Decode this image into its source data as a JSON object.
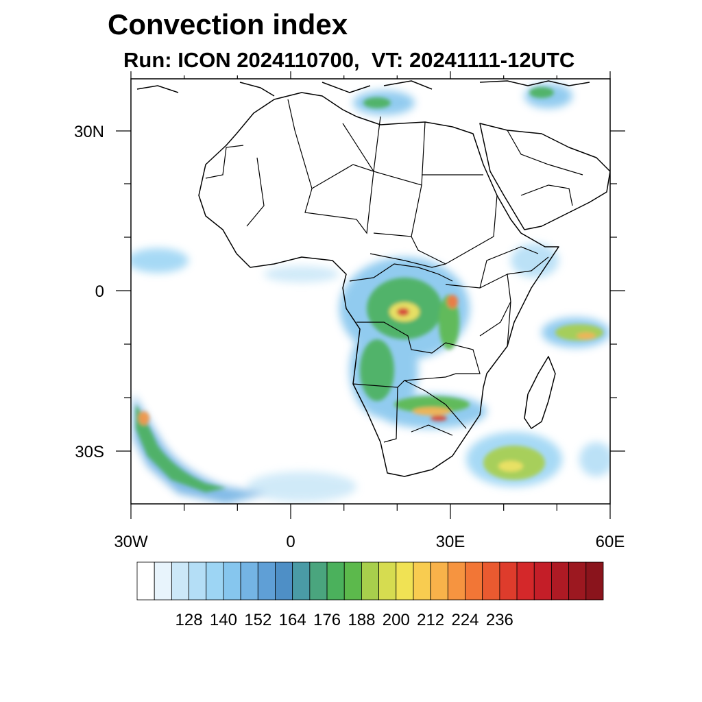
{
  "title": "Convection index",
  "subtitle": "Run: ICON 2024110700,  VT: 20241111-12UTC",
  "map": {
    "lon_labels": [
      "30W",
      "0",
      "30E",
      "60E"
    ],
    "lat_labels": [
      "30N",
      "0",
      "30S"
    ]
  },
  "colorbar": {
    "labels": [
      "128",
      "140",
      "152",
      "164",
      "176",
      "188",
      "200",
      "212",
      "224",
      "236"
    ],
    "colors": [
      "#ffffff",
      "#e8f4fc",
      "#cce8f8",
      "#b4def6",
      "#9dd5f4",
      "#86c6ee",
      "#74b4e4",
      "#5f9fd6",
      "#4e8fc6",
      "#4a9ba6",
      "#4aa57e",
      "#4bb15c",
      "#5cb94c",
      "#a8cf4c",
      "#d6dc50",
      "#f0e254",
      "#f8cc50",
      "#f8b24a",
      "#f69440",
      "#f27636",
      "#ea5a30",
      "#de3c2c",
      "#d4282a",
      "#c41e28",
      "#ae1a24",
      "#9c1820",
      "#8a141c"
    ]
  },
  "chart_data": {
    "type": "heatmap",
    "title": "Convection index",
    "subtitle": "Run: ICON 2024110700,  VT: 20241111-12UTC",
    "x_axis": {
      "labels": [
        "30W",
        "0",
        "30E",
        "60E"
      ],
      "range_deg": [
        -30,
        60
      ]
    },
    "y_axis": {
      "labels": [
        "30N",
        "0",
        "30S"
      ],
      "range_deg": [
        -40,
        40
      ]
    },
    "colorbar_ticks": [
      128,
      140,
      152,
      164,
      176,
      188,
      200,
      212,
      224,
      236
    ],
    "colorbar_levels": 27
  }
}
